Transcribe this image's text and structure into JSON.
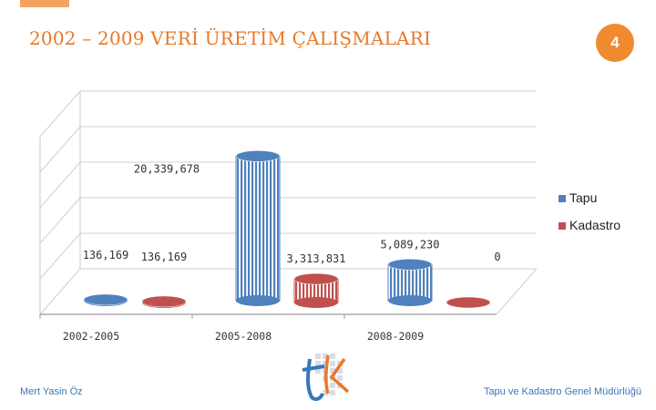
{
  "slide": {
    "title": "2002 – 2009 VERİ ÜRETİM ÇALIŞMALARI",
    "page_number": "4",
    "footer_left": "Mert Yasin Öz",
    "footer_right": "Tapu ve Kadastro Genel Müdürlüğü",
    "logo_icon": "tk-logo-icon"
  },
  "colors": {
    "accent": "#f08a30",
    "tapu": "#4f81bd",
    "kadastro": "#c0504d"
  },
  "chart_data": {
    "type": "bar",
    "categories": [
      "2002-2005",
      "2005-2008",
      "2008-2009"
    ],
    "series": [
      {
        "name": "Tapu",
        "values": [
          136169,
          20339678,
          5089230
        ],
        "labels": [
          "136,169",
          "20,339,678",
          "5,089,230"
        ]
      },
      {
        "name": "Kadastro",
        "values": [
          136169,
          3313831,
          0
        ],
        "labels": [
          "136,169",
          "3,313,831",
          "0"
        ]
      }
    ],
    "title": "",
    "xlabel": "",
    "ylabel": "",
    "ylim": [
      0,
      25000000
    ],
    "grid": true,
    "legend": "right",
    "style": "3d-cylinder"
  }
}
